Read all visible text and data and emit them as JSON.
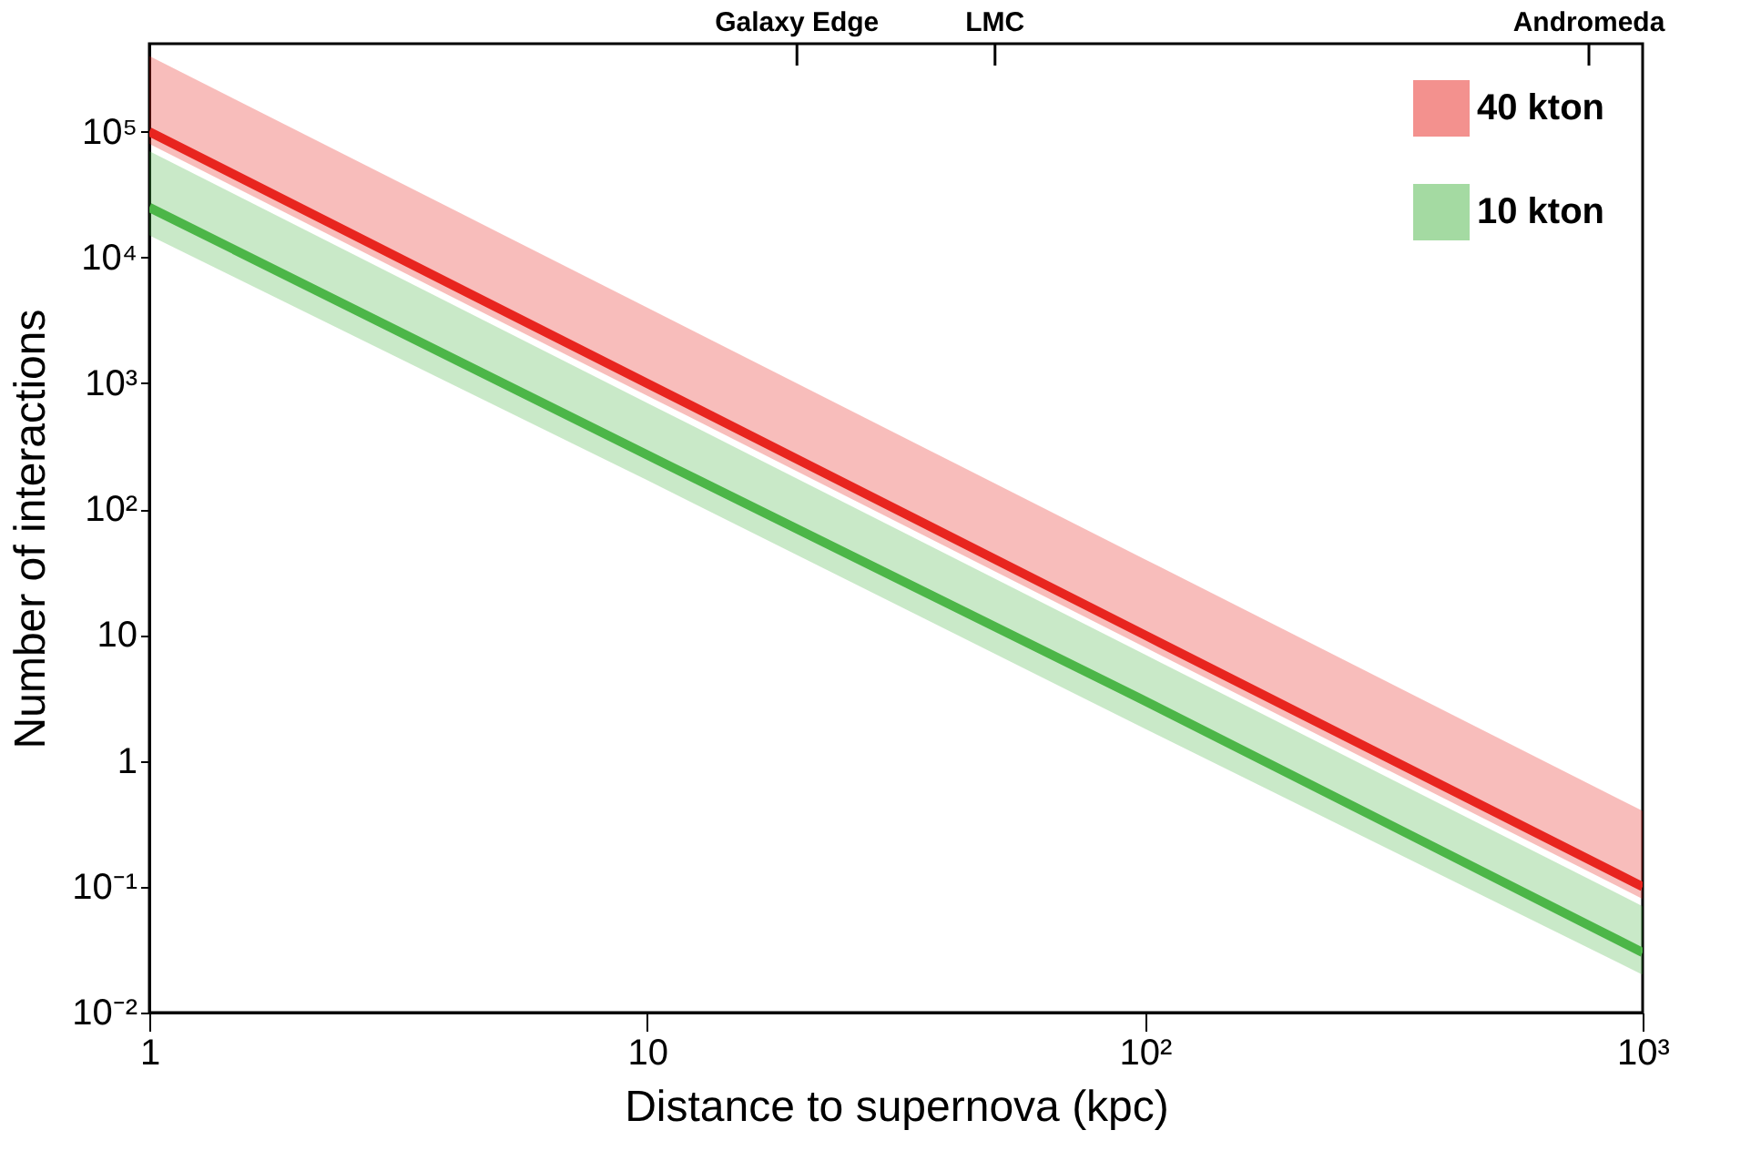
{
  "chart_data": {
    "type": "line",
    "xlabel": "Distance to supernova (kpc)",
    "ylabel": "Number of interactions",
    "log": "xy",
    "grid": false,
    "legend": "top right",
    "line_style": "solid",
    "marker": "none",
    "xlim": [
      1,
      1000
    ],
    "xticks": [
      1,
      10,
      {
        "value": 100,
        "label": "10²"
      },
      {
        "value": 1000,
        "label": "10³"
      }
    ],
    "ref_lines": [
      {
        "axis": "x",
        "value": 20,
        "label": "Galaxy Edge"
      },
      {
        "axis": "x",
        "value": 50,
        "label": "LMC"
      },
      {
        "axis": "x",
        "value": 780,
        "label": "Andromeda"
      }
    ],
    "ylim": [
      0.01,
      500000
    ],
    "yticks": [
      {
        "value": 0.01,
        "label": "10⁻²"
      },
      {
        "value": 0.1,
        "label": "10⁻¹"
      },
      1,
      10,
      {
        "value": 100,
        "label": "10²"
      },
      {
        "value": 1000,
        "label": "10³"
      },
      {
        "value": 10000,
        "label": "10⁴"
      },
      {
        "value": 100000,
        "label": "10⁵"
      }
    ],
    "series": [
      {
        "name": "40 kton",
        "color": "#e8251f",
        "x": [
          1,
          10,
          100,
          1000
        ],
        "values": [
          100000,
          1000,
          10,
          0.1
        ],
        "lower": [
          80000,
          800,
          8,
          0.08
        ],
        "upper": [
          400000,
          4000,
          40,
          0.4
        ]
      },
      {
        "name": "10 kton",
        "color": "#4cb648",
        "x": [
          1,
          10,
          100,
          1000
        ],
        "values": [
          25000,
          270,
          3,
          0.03
        ],
        "lower": [
          15000,
          170,
          1.8,
          0.02
        ],
        "upper": [
          70000,
          700,
          7,
          0.07
        ]
      }
    ]
  }
}
